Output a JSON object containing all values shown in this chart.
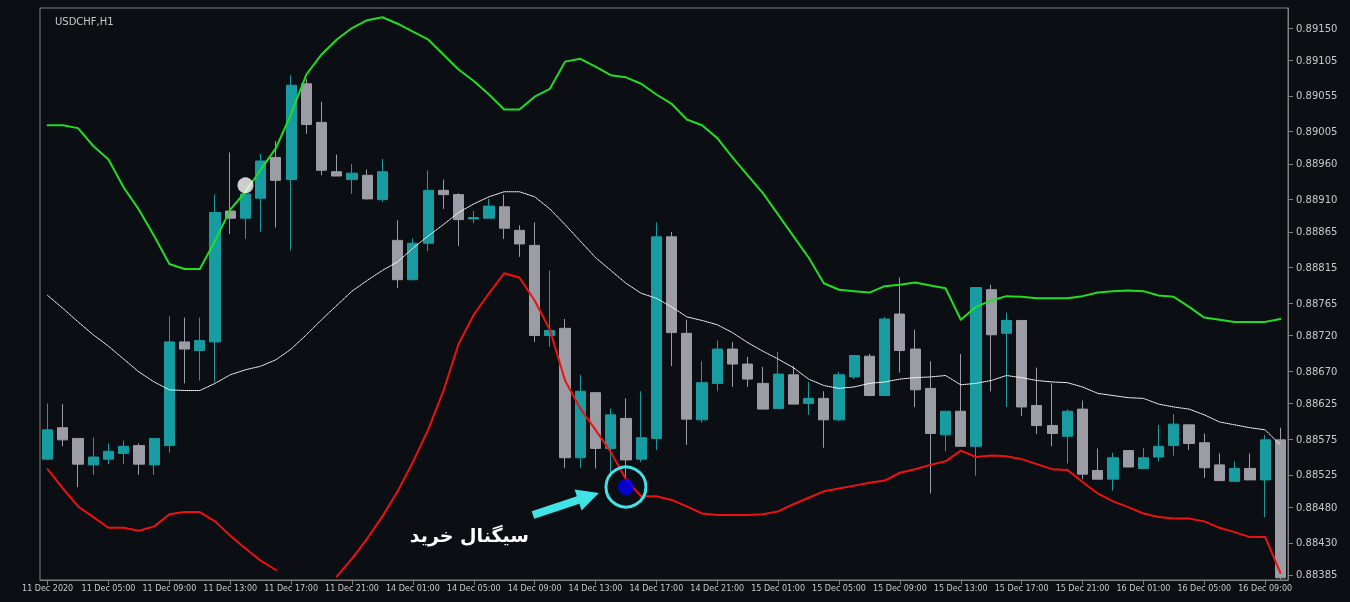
{
  "chart_data": {
    "type": "candlestick",
    "title": "USDCHF,H1",
    "categories": [
      "11 Dec 2020",
      null,
      null,
      null,
      "11 Dec 05:00",
      null,
      null,
      null,
      "11 Dec 09:00",
      null,
      null,
      null,
      "11 Dec 13:00",
      null,
      null,
      null,
      "11 Dec 17:00",
      null,
      null,
      null,
      "11 Dec 21:00",
      null,
      null,
      null,
      "14 Dec 01:00",
      null,
      null,
      null,
      "14 Dec 05:00",
      null,
      null,
      null,
      "14 Dec 09:00",
      null,
      null,
      null,
      "14 Dec 13:00",
      null,
      null,
      null,
      "14 Dec 17:00",
      null,
      null,
      null,
      "14 Dec 21:00",
      null,
      null,
      null,
      "15 Dec 01:00",
      null,
      null,
      null,
      "15 Dec 05:00",
      null,
      null,
      null,
      "15 Dec 09:00",
      null,
      null,
      null,
      "15 Dec 13:00",
      null,
      null,
      null,
      "15 Dec 17:00",
      null,
      null,
      null,
      "15 Dec 21:00",
      null,
      null,
      null,
      "16 Dec 01:00",
      null,
      null,
      null,
      "16 Dec 05:00",
      null,
      null,
      null,
      "16 Dec 09:00",
      null
    ],
    "ohlc": [
      [
        0.88547,
        0.88625,
        0.88546,
        0.88588
      ],
      [
        0.88591,
        0.88624,
        0.88565,
        0.88574
      ],
      [
        0.88576,
        0.88576,
        0.88508,
        0.8854
      ],
      [
        0.88539,
        0.88577,
        0.88525,
        0.8855
      ],
      [
        0.88547,
        0.88569,
        0.8854,
        0.88558
      ],
      [
        0.88555,
        0.88573,
        0.8854,
        0.88565
      ],
      [
        0.88566,
        0.88569,
        0.88525,
        0.8854
      ],
      [
        0.88539,
        0.88576,
        0.88525,
        0.88576
      ],
      [
        0.88566,
        0.88747,
        0.88556,
        0.88711
      ],
      [
        0.88711,
        0.88745,
        0.88653,
        0.88701
      ],
      [
        0.88699,
        0.88745,
        0.88657,
        0.88713
      ],
      [
        0.88711,
        0.88917,
        0.88655,
        0.88892
      ],
      [
        0.88894,
        0.88976,
        0.88862,
        0.88884
      ],
      [
        0.88884,
        0.88918,
        0.88855,
        0.88918
      ],
      [
        0.88912,
        0.88974,
        0.88865,
        0.88964
      ],
      [
        0.88969,
        0.88992,
        0.88871,
        0.88937
      ],
      [
        0.88938,
        0.89084,
        0.88839,
        0.8907
      ],
      [
        0.89072,
        0.89079,
        0.89002,
        0.89015
      ],
      [
        0.89018,
        0.89047,
        0.88944,
        0.88951
      ],
      [
        0.88949,
        0.88973,
        0.88943,
        0.88943
      ],
      [
        0.88938,
        0.8896,
        0.88918,
        0.88947
      ],
      [
        0.88944,
        0.88952,
        0.8891,
        0.88911
      ],
      [
        0.8891,
        0.88967,
        0.88907,
        0.88949
      ],
      [
        0.88853,
        0.88881,
        0.88786,
        0.88798
      ],
      [
        0.88798,
        0.88856,
        0.88797,
        0.88849
      ],
      [
        0.88849,
        0.88951,
        0.88838,
        0.88923
      ],
      [
        0.88923,
        0.88938,
        0.88897,
        0.88917
      ],
      [
        0.88917,
        0.88919,
        0.88845,
        0.88882
      ],
      [
        0.88885,
        0.88894,
        0.88877,
        0.88883
      ],
      [
        0.88884,
        0.88911,
        0.88884,
        0.88901
      ],
      [
        0.889,
        0.88917,
        0.88855,
        0.8887
      ],
      [
        0.88867,
        0.88874,
        0.8883,
        0.88848
      ],
      [
        0.88846,
        0.88878,
        0.88711,
        0.8872
      ],
      [
        0.8872,
        0.88811,
        0.88704,
        0.88727
      ],
      [
        0.8873,
        0.88743,
        0.88535,
        0.88549
      ],
      [
        0.88549,
        0.88665,
        0.88535,
        0.88642
      ],
      [
        0.8864,
        0.8864,
        0.88534,
        0.88562
      ],
      [
        0.88562,
        0.88618,
        0.88522,
        0.88609
      ],
      [
        0.88604,
        0.88632,
        0.88522,
        0.88546
      ],
      [
        0.88547,
        0.88642,
        0.88543,
        0.88577
      ],
      [
        0.88576,
        0.88878,
        0.8856,
        0.88858
      ],
      [
        0.88858,
        0.88865,
        0.88677,
        0.88724
      ],
      [
        0.88723,
        0.88742,
        0.88567,
        0.88603
      ],
      [
        0.88602,
        0.88684,
        0.88598,
        0.88654
      ],
      [
        0.88653,
        0.88713,
        0.88642,
        0.88701
      ],
      [
        0.88701,
        0.88711,
        0.88648,
        0.8868
      ],
      [
        0.8868,
        0.8869,
        0.88648,
        0.88659
      ],
      [
        0.88653,
        0.88676,
        0.88617,
        0.88617
      ],
      [
        0.88618,
        0.88697,
        0.88618,
        0.88666
      ],
      [
        0.88665,
        0.88677,
        0.88624,
        0.88624
      ],
      [
        0.88625,
        0.88655,
        0.88609,
        0.88632
      ],
      [
        0.88632,
        0.88642,
        0.88563,
        0.88602
      ],
      [
        0.88602,
        0.88669,
        0.886,
        0.88665
      ],
      [
        0.88662,
        0.88692,
        0.88659,
        0.88692
      ],
      [
        0.88691,
        0.88694,
        0.88635,
        0.88636
      ],
      [
        0.88636,
        0.88746,
        0.88636,
        0.88743
      ],
      [
        0.8875,
        0.88801,
        0.88668,
        0.88699
      ],
      [
        0.88701,
        0.88728,
        0.8862,
        0.88644
      ],
      [
        0.88646,
        0.88684,
        0.88499,
        0.88583
      ],
      [
        0.88581,
        0.88614,
        0.88558,
        0.88614
      ],
      [
        0.88614,
        0.88694,
        0.88565,
        0.88565
      ],
      [
        0.88565,
        0.88787,
        0.88524,
        0.88787
      ],
      [
        0.88784,
        0.88791,
        0.88642,
        0.88721
      ],
      [
        0.88723,
        0.88752,
        0.8862,
        0.88741
      ],
      [
        0.88741,
        0.88741,
        0.88607,
        0.8862
      ],
      [
        0.88622,
        0.88675,
        0.88582,
        0.88594
      ],
      [
        0.88594,
        0.88653,
        0.88565,
        0.88583
      ],
      [
        0.88579,
        0.88617,
        0.88541,
        0.88614
      ],
      [
        0.88617,
        0.88629,
        0.88519,
        0.88526
      ],
      [
        0.88531,
        0.88562,
        0.88519,
        0.88519
      ],
      [
        0.88519,
        0.88556,
        0.88503,
        0.88549
      ],
      [
        0.88559,
        0.88559,
        0.88536,
        0.88536
      ],
      [
        0.88534,
        0.88563,
        0.88534,
        0.88549
      ],
      [
        0.8855,
        0.88595,
        0.88544,
        0.88565
      ],
      [
        0.88566,
        0.8861,
        0.88552,
        0.88596
      ],
      [
        0.88595,
        0.88595,
        0.8856,
        0.88569
      ],
      [
        0.8857,
        0.88583,
        0.88521,
        0.88535
      ],
      [
        0.88539,
        0.88555,
        0.88517,
        0.88517
      ],
      [
        0.88516,
        0.88544,
        0.88516,
        0.88534
      ],
      [
        0.88534,
        0.88555,
        0.88518,
        0.88518
      ],
      [
        0.88518,
        0.88581,
        0.88466,
        0.88574
      ],
      [
        0.88574,
        0.88591,
        0.88379,
        0.88381
      ]
    ],
    "colors": [
      "#169ca1",
      "#9c9ca5",
      "#9c9ca5",
      "#169ca1",
      "#169ca1",
      "#169ca1",
      "#9c9ca5",
      "#169ca1",
      "#169ca1",
      "#9c9ca5",
      "#169ca1",
      "#169ca1",
      "#9c9ca5",
      "#169ca1",
      "#169ca1",
      "#9c9ca5",
      "#169ca1",
      "#9c9ca5",
      "#9c9ca5",
      "#9c9ca5",
      "#169ca1",
      "#9c9ca5",
      "#169ca1",
      "#9c9ca5",
      "#169ca1",
      "#169ca1",
      "#9c9ca5",
      "#9c9ca5",
      "#169ca1",
      "#169ca1",
      "#9c9ca5",
      "#9c9ca5",
      "#9c9ca5",
      "#169ca1",
      "#9c9ca5",
      "#169ca1",
      "#9c9ca5",
      "#169ca1",
      "#9c9ca5",
      "#169ca1",
      "#169ca1",
      "#9c9ca5",
      "#9c9ca5",
      "#169ca1",
      "#169ca1",
      "#9c9ca5",
      "#9c9ca5",
      "#9c9ca5",
      "#169ca1",
      "#9c9ca5",
      "#169ca1",
      "#9c9ca5",
      "#169ca1",
      "#169ca1",
      "#9c9ca5",
      "#169ca1",
      "#9c9ca5",
      "#9c9ca5",
      "#9c9ca5",
      "#169ca1",
      "#9c9ca5",
      "#169ca1",
      "#9c9ca5",
      "#169ca1",
      "#9c9ca5",
      "#9c9ca5",
      "#9c9ca5",
      "#169ca1",
      "#9c9ca5",
      "#9c9ca5",
      "#169ca1",
      "#9c9ca5",
      "#169ca1",
      "#169ca1",
      "#169ca1",
      "#9c9ca5",
      "#9c9ca5",
      "#9c9ca5",
      "#169ca1",
      "#9c9ca5",
      "#169ca1",
      "#9c9ca5"
    ],
    "ylim": [
      0.88378,
      0.89178
    ],
    "yticks": [
      {
        "value": 0.8915,
        "label": "0.89150"
      },
      {
        "value": 0.89105,
        "label": "0.89105"
      },
      {
        "value": 0.89055,
        "label": "0.89055"
      },
      {
        "value": 0.89005,
        "label": "0.89005"
      },
      {
        "value": 0.8896,
        "label": "0.88960"
      },
      {
        "value": 0.8891,
        "label": "0.88910"
      },
      {
        "value": 0.88865,
        "label": "0.88865"
      },
      {
        "value": 0.88815,
        "label": "0.88815"
      },
      {
        "value": 0.88765,
        "label": "0.88765"
      },
      {
        "value": 0.8872,
        "label": "0.88720"
      },
      {
        "value": 0.8867,
        "label": "0.88670"
      },
      {
        "value": 0.88625,
        "label": "0.88625"
      },
      {
        "value": 0.88575,
        "label": "0.88575"
      },
      {
        "value": 0.88525,
        "label": "0.88525"
      },
      {
        "value": 0.8848,
        "label": "0.88480"
      },
      {
        "value": 0.8843,
        "label": "0.88430"
      },
      {
        "value": 0.88385,
        "label": "0.88385"
      }
    ],
    "annotations": [
      "سیگنال خرید"
    ],
    "series": [
      {
        "type": "line",
        "color": "#22dd22",
        "line_style": "solid",
        "values": [
          0.89014,
          0.89014,
          0.8901,
          0.88985,
          0.88966,
          0.88927,
          0.88896,
          0.88859,
          0.8882,
          0.88813,
          0.88813,
          0.88852,
          0.88896,
          0.88921,
          0.88952,
          0.88982,
          0.8903,
          0.89085,
          0.89113,
          0.89134,
          0.8915,
          0.89161,
          0.89165,
          0.89156,
          0.89145,
          0.89134,
          0.89113,
          0.89092,
          0.89076,
          0.89057,
          0.89036,
          0.89036,
          0.89054,
          0.89065,
          0.89103,
          0.89107,
          0.89096,
          0.89084,
          0.89081,
          0.89072,
          0.89057,
          0.89044,
          0.89022,
          0.89014,
          0.88996,
          0.88969,
          0.88944,
          0.88919,
          0.88889,
          0.88859,
          0.88829,
          0.88793,
          0.88784,
          0.88782,
          0.8878,
          0.88789,
          0.88791,
          0.88794,
          0.8879,
          0.88786,
          0.88742,
          0.8876,
          0.88769,
          0.88775,
          0.88774,
          0.88772,
          0.88772,
          0.88772,
          0.88775,
          0.8878,
          0.88782,
          0.88783,
          0.88782,
          0.88776,
          0.88774,
          0.8876,
          0.88745,
          0.88742,
          0.88739,
          0.88739,
          0.88739,
          0.88743
        ]
      },
      {
        "type": "line",
        "color": "#ffffff",
        "line_style": "dotted",
        "values": [
          0.88776,
          0.88758,
          0.88739,
          0.88721,
          0.88705,
          0.88687,
          0.88669,
          0.88655,
          0.88644,
          0.88643,
          0.88643,
          0.88653,
          0.88665,
          0.88672,
          0.88677,
          0.88686,
          0.88701,
          0.88721,
          0.88742,
          0.88762,
          0.88782,
          0.88797,
          0.88811,
          0.88823,
          0.88842,
          0.88859,
          0.88875,
          0.88892,
          0.88904,
          0.88914,
          0.88921,
          0.88921,
          0.88914,
          0.88897,
          0.88875,
          0.88852,
          0.88829,
          0.88811,
          0.88793,
          0.88779,
          0.88772,
          0.8876,
          0.88746,
          0.88741,
          0.88735,
          0.88724,
          0.8871,
          0.88698,
          0.88687,
          0.88675,
          0.88659,
          0.8865,
          0.88646,
          0.88648,
          0.88653,
          0.88655,
          0.88659,
          0.88661,
          0.88662,
          0.88664,
          0.88651,
          0.88653,
          0.88657,
          0.88664,
          0.88661,
          0.88657,
          0.88655,
          0.88654,
          0.88648,
          0.88639,
          0.88636,
          0.88633,
          0.88632,
          0.88624,
          0.8862,
          0.88617,
          0.88609,
          0.88599,
          0.88595,
          0.88591,
          0.88588,
          0.88567
        ]
      },
      {
        "type": "line",
        "color": "#ee1111",
        "line_style": "solid",
        "values": [
          0.88533,
          0.88506,
          0.88481,
          0.88466,
          0.88451,
          0.88451,
          0.88447,
          0.88453,
          0.8847,
          0.88473,
          0.88473,
          0.8846,
          0.8844,
          0.88422,
          0.88405,
          0.88392,
          null,
          null,
          null,
          0.88383,
          0.88408,
          0.88436,
          0.88467,
          0.88502,
          0.88543,
          0.88588,
          0.88642,
          0.88708,
          0.88749,
          0.88779,
          0.88807,
          0.88801,
          0.88769,
          0.88728,
          0.88657,
          0.88618,
          0.88588,
          0.88557,
          0.88519,
          0.88495,
          0.88495,
          0.8849,
          0.88481,
          0.88471,
          0.88469,
          0.88469,
          0.88469,
          0.8847,
          0.88474,
          0.88484,
          0.88493,
          0.88502,
          0.88506,
          0.8851,
          0.88514,
          0.88517,
          0.88528,
          0.88533,
          0.88539,
          0.88544,
          0.88559,
          0.8855,
          0.88552,
          0.88551,
          0.88547,
          0.8854,
          0.88533,
          0.88532,
          0.88515,
          0.88499,
          0.88488,
          0.8848,
          0.88471,
          0.88466,
          0.88464,
          0.88464,
          0.8846,
          0.88451,
          0.88445,
          0.88438,
          0.88438,
          0.88388
        ]
      },
      {
        "type": "scatter",
        "color": "#ffffff",
        "marker": "circle",
        "values": [
          null,
          null,
          null,
          null,
          null,
          null,
          null,
          null,
          null,
          null,
          null,
          null,
          null,
          0.8893,
          null,
          null,
          null,
          null,
          null,
          null,
          null,
          null,
          null,
          null,
          null,
          null,
          null,
          null,
          null,
          null,
          null,
          null,
          null,
          null,
          null,
          null,
          null,
          null,
          null,
          null,
          null,
          null,
          null,
          null,
          null,
          null,
          null,
          null,
          null,
          null,
          null,
          null,
          null,
          null,
          null,
          null,
          null,
          null,
          null,
          null,
          null,
          null,
          null,
          null,
          null,
          null,
          null,
          null,
          null,
          null,
          null,
          null,
          null,
          null,
          null,
          null,
          null,
          null,
          null,
          null,
          null,
          null
        ]
      },
      {
        "type": "scatter",
        "color": "#0000ff",
        "marker": "circle",
        "values": [
          null,
          null,
          null,
          null,
          null,
          null,
          null,
          null,
          null,
          null,
          null,
          null,
          null,
          null,
          null,
          null,
          null,
          null,
          null,
          null,
          null,
          null,
          null,
          null,
          null,
          null,
          null,
          null,
          null,
          null,
          null,
          null,
          null,
          null,
          null,
          null,
          null,
          null,
          0.88508,
          null,
          null,
          null,
          null,
          null,
          null,
          null,
          null,
          null,
          null,
          null,
          null,
          null,
          null,
          null,
          null,
          null,
          null,
          null,
          null,
          null,
          null,
          null,
          null,
          null,
          null,
          null,
          null,
          null,
          null,
          null,
          null,
          null,
          null,
          null,
          null,
          null,
          null,
          null,
          null,
          null,
          null,
          null
        ]
      }
    ]
  }
}
